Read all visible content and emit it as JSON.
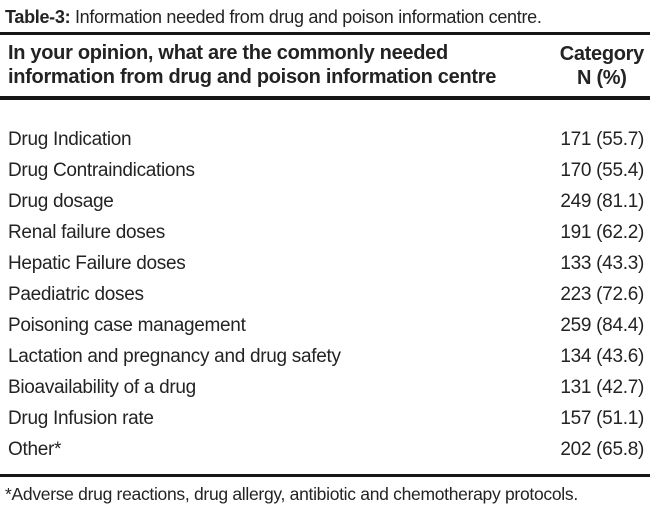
{
  "title": {
    "label": "Table-3:",
    "text": " Information needed from drug and poison information centre."
  },
  "header": {
    "question_line1": "In your opinion, what are the commonly needed",
    "question_line2": "information from drug and poison information centre",
    "category_label": "Category",
    "category_sub": "N (%)"
  },
  "rows": [
    {
      "item": "Drug Indication",
      "value": "171 (55.7)"
    },
    {
      "item": "Drug Contraindications",
      "value": "170 (55.4)"
    },
    {
      "item": "Drug dosage",
      "value": "249 (81.1)"
    },
    {
      "item": "Renal failure doses",
      "value": "191 (62.2)"
    },
    {
      "item": "Hepatic Failure doses",
      "value": "133 (43.3)"
    },
    {
      "item": "Paediatric doses",
      "value": "223 (72.6)"
    },
    {
      "item": "Poisoning case management",
      "value": "259 (84.4)"
    },
    {
      "item": "Lactation and pregnancy and drug safety",
      "value": "134 (43.6)"
    },
    {
      "item": "Bioavailability of a drug",
      "value": "131 (42.7)"
    },
    {
      "item": "Drug Infusion rate",
      "value": "157 (51.1)"
    },
    {
      "item": "Other*",
      "value": "202 (65.8)"
    }
  ],
  "footnote": "*Adverse drug reactions, drug allergy, antibiotic and chemotherapy protocols.",
  "colors": {
    "text": "#232323",
    "rule": "#161616",
    "background": "#ffffff"
  }
}
